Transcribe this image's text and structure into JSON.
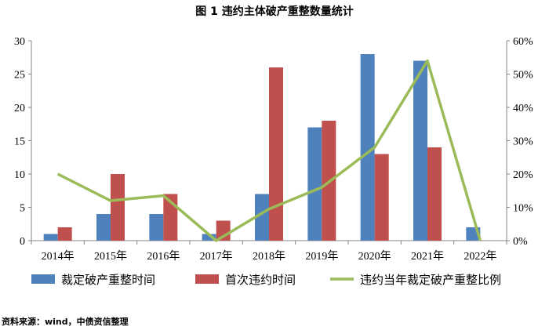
{
  "title": "图 1  违约主体破产重整数量统计",
  "source": "资料来源：wind，中债资信整理",
  "chart_data": {
    "type": "bar",
    "categories": [
      "2014年",
      "2015年",
      "2016年",
      "2017年",
      "2018年",
      "2019年",
      "2020年",
      "2021年",
      "2022年"
    ],
    "series": [
      {
        "name": "裁定破产重整时间",
        "type": "bar",
        "axis": "left",
        "color": "#4F81BD",
        "values": [
          1,
          4,
          4,
          1,
          7,
          17,
          28,
          27,
          2
        ]
      },
      {
        "name": "首次违约时间",
        "type": "bar",
        "axis": "left",
        "color": "#C0504D",
        "values": [
          2,
          10,
          7,
          3,
          26,
          18,
          13,
          14,
          0
        ]
      },
      {
        "name": "违约当年裁定破产重整比例",
        "type": "line",
        "axis": "right",
        "color": "#9BBB59",
        "values": [
          0.2,
          0.12,
          0.135,
          0.0,
          0.095,
          0.16,
          0.28,
          0.54,
          0.0
        ]
      }
    ],
    "y_left": {
      "min": 0,
      "max": 30,
      "ticks": [
        "0",
        "5",
        "10",
        "15",
        "20",
        "25",
        "30"
      ]
    },
    "y_right": {
      "min": 0,
      "max": 0.6,
      "ticks": [
        "0%",
        "10%",
        "20%",
        "30%",
        "40%",
        "50%",
        "60%"
      ]
    },
    "grid": false,
    "legend_position": "bottom"
  }
}
